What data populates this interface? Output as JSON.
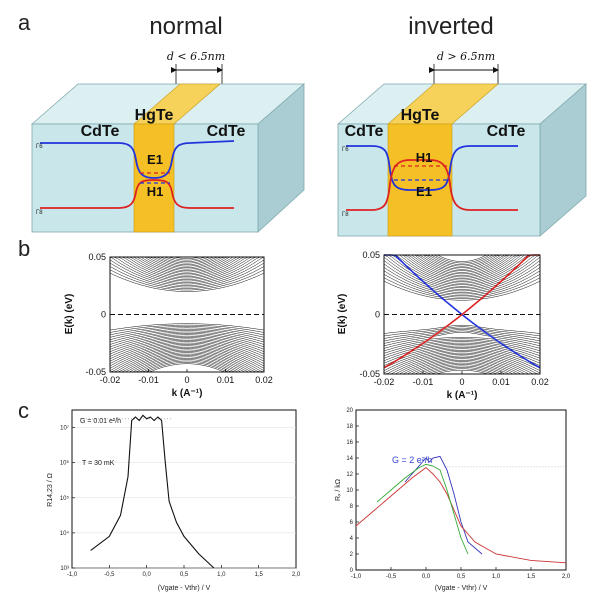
{
  "panel_a": {
    "letter": "a",
    "normal": {
      "heading": "normal",
      "dimension": "d < 6.5nm",
      "left_material": "CdTe",
      "center_material": "HgTe",
      "right_material": "CdTe",
      "upper_band": "E1",
      "lower_band": "H1",
      "gamma_upper": "Γ6",
      "gamma_lower": "Γ8"
    },
    "inverted": {
      "heading": "inverted",
      "dimension": "d > 6.5nm",
      "left_material": "CdTe",
      "center_material": "HgTe",
      "right_material": "CdTe",
      "upper_band": "H1",
      "lower_band": "E1",
      "gamma_upper": "Γ6",
      "gamma_lower": "Γ8"
    },
    "colors": {
      "slab": "#c9e7ea",
      "slab_side": "#a9cdd2",
      "hgte": "#f4c025",
      "blue_band": "#2233dd",
      "red_band": "#dd2222"
    }
  },
  "panel_b": {
    "letter": "b"
  },
  "panel_c": {
    "letter": "c"
  },
  "chart_data": [
    {
      "id": "b-normal",
      "type": "line",
      "xlabel": "k (A⁻¹)",
      "ylabel": "E(k) (eV)",
      "x_ticks": [
        "-0.02",
        "-0.01",
        "0",
        "0.01",
        "0.02"
      ],
      "y_ticks": [
        "0.05",
        "0",
        "-0.05"
      ],
      "xlim": [
        -0.02,
        0.02
      ],
      "ylim": [
        -0.05,
        0.05
      ],
      "fermi_level": 0,
      "conduction_band_edge": 0.02,
      "valence_band_edge": -0.008,
      "edge_states": false
    },
    {
      "id": "b-inverted",
      "type": "line",
      "xlabel": "k (A⁻¹)",
      "ylabel": "E(k) (eV)",
      "x_ticks": [
        "-0.02",
        "-0.01",
        "0",
        "0.01",
        "0.02"
      ],
      "y_ticks": [
        "0.05",
        "0",
        "-0.05"
      ],
      "xlim": [
        -0.02,
        0.02
      ],
      "ylim": [
        -0.05,
        0.05
      ],
      "fermi_level": 0,
      "conduction_band_edge": 0.012,
      "valence_band_edge": -0.012,
      "edge_states": true,
      "edge_state_colors": [
        "#2233dd",
        "#dd2222"
      ]
    },
    {
      "id": "c-normal",
      "type": "line",
      "ylabel": "R14,23 / Ω",
      "xlabel": "(Vgate - Vthr) / V",
      "x_ticks": [
        "-1,0",
        "-0,5",
        "0,0",
        "0,5",
        "1,0",
        "1,5",
        "2,0"
      ],
      "y_ticks": [
        "10³",
        "10⁴",
        "10⁵",
        "10⁶",
        "10⁷"
      ],
      "xlim": [
        -1.0,
        2.0
      ],
      "ylim_log10": [
        3,
        7.5
      ],
      "annotations": [
        "G = 0.01 e²/h",
        "T = 30 mK"
      ],
      "series": [
        {
          "x": [
            -0.75,
            -0.5,
            -0.35,
            -0.25,
            -0.2,
            -0.15,
            -0.1,
            -0.05,
            0.0,
            0.05,
            0.1,
            0.15,
            0.2,
            0.25,
            0.3,
            0.4,
            0.5,
            0.7,
            0.9
          ],
          "y_log10": [
            3.5,
            3.9,
            4.5,
            5.6,
            7.2,
            7.3,
            7.2,
            7.35,
            7.25,
            7.3,
            7.2,
            7.3,
            7.2,
            6.0,
            4.9,
            4.3,
            3.9,
            3.4,
            3.0
          ]
        }
      ]
    },
    {
      "id": "c-inverted",
      "type": "line",
      "ylabel": "Rₓ / kΩ",
      "xlabel": "(Vgate - Vthr) / V",
      "x_ticks": [
        "-1,0",
        "-0,5",
        "0,0",
        "0,5",
        "1,0",
        "1,5",
        "2,0"
      ],
      "y_ticks": [
        "0",
        "2",
        "4",
        "6",
        "8",
        "10",
        "12",
        "14",
        "16",
        "18",
        "20"
      ],
      "xlim": [
        -1.0,
        2.0
      ],
      "ylim": [
        0,
        20
      ],
      "annotations": [
        "G = 2 e²/h"
      ],
      "reference_line": 12.9,
      "series": [
        {
          "color": "#3333bb",
          "x": [
            -0.3,
            -0.1,
            0.0,
            0.05,
            0.1,
            0.2,
            0.3,
            0.4,
            0.5,
            0.6,
            0.8
          ],
          "y": [
            11.0,
            13.0,
            14.0,
            13.5,
            14.0,
            14.2,
            12.5,
            9.5,
            6.0,
            3.5,
            2.0
          ]
        },
        {
          "color": "#cc3333",
          "x": [
            -1.0,
            -0.8,
            -0.6,
            -0.4,
            -0.2,
            0.0,
            0.1,
            0.2,
            0.3,
            0.4,
            0.5,
            0.7,
            1.0,
            1.5,
            2.0
          ],
          "y": [
            5.5,
            7.0,
            8.5,
            10.0,
            11.5,
            12.8,
            12.0,
            11.0,
            9.5,
            7.5,
            5.5,
            3.5,
            2.0,
            1.2,
            0.9
          ]
        },
        {
          "color": "#33aa33",
          "x": [
            -0.7,
            -0.5,
            -0.3,
            -0.1,
            0.0,
            0.1,
            0.2,
            0.3,
            0.4,
            0.5,
            0.6
          ],
          "y": [
            8.5,
            10.0,
            11.5,
            12.8,
            13.2,
            13.0,
            12.5,
            10.0,
            7.0,
            4.0,
            2.0
          ]
        }
      ]
    }
  ]
}
